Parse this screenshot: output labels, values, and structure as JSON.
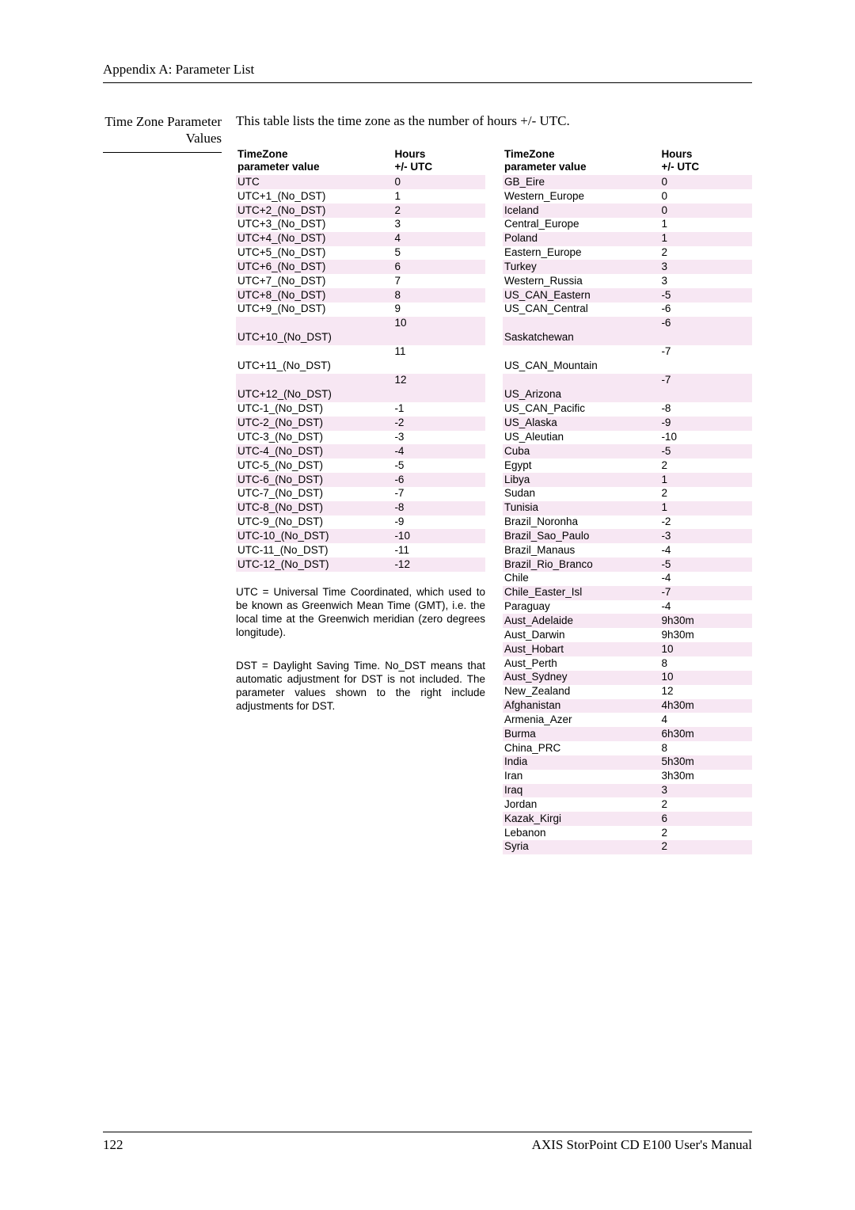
{
  "header": "Appendix A: Parameter List",
  "sectionTitle": "Time Zone Parameter Values",
  "introText": "This table lists the time zone as the number of hours +/- UTC.",
  "table": {
    "col1Header": "TimeZone parameter value",
    "col2Header": "Hours +/- UTC",
    "stripeColor": "#f7e7f3",
    "fontsize": 13.5,
    "left": [
      {
        "name": "UTC",
        "hours": "0"
      },
      {
        "name": "UTC+1_(No_DST)",
        "hours": "1"
      },
      {
        "name": "UTC+2_(No_DST)",
        "hours": "2"
      },
      {
        "name": "UTC+3_(No_DST)",
        "hours": "3"
      },
      {
        "name": "UTC+4_(No_DST)",
        "hours": "4"
      },
      {
        "name": "UTC+5_(No_DST)",
        "hours": "5"
      },
      {
        "name": "UTC+6_(No_DST)",
        "hours": "6"
      },
      {
        "name": "UTC+7_(No_DST)",
        "hours": "7"
      },
      {
        "name": "UTC+8_(No_DST)",
        "hours": "8"
      },
      {
        "name": "UTC+9_(No_DST)",
        "hours": "9"
      },
      {
        "name": "UTC+10_(No_DST)",
        "hours": "10",
        "tall": true
      },
      {
        "name": "UTC+11_(No_DST)",
        "hours": "11",
        "tall": true
      },
      {
        "name": "UTC+12_(No_DST)",
        "hours": "12",
        "tall": true
      },
      {
        "name": "UTC-1_(No_DST)",
        "hours": "-1"
      },
      {
        "name": "UTC-2_(No_DST)",
        "hours": "-2"
      },
      {
        "name": "UTC-3_(No_DST)",
        "hours": "-3"
      },
      {
        "name": "UTC-4_(No_DST)",
        "hours": "-4"
      },
      {
        "name": "UTC-5_(No_DST)",
        "hours": "-5"
      },
      {
        "name": "UTC-6_(No_DST)",
        "hours": "-6"
      },
      {
        "name": "UTC-7_(No_DST)",
        "hours": "-7"
      },
      {
        "name": "UTC-8_(No_DST)",
        "hours": "-8"
      },
      {
        "name": "UTC-9_(No_DST)",
        "hours": "-9"
      },
      {
        "name": "UTC-10_(No_DST)",
        "hours": "-10"
      },
      {
        "name": "UTC-11_(No_DST)",
        "hours": "-11"
      },
      {
        "name": "UTC-12_(No_DST)",
        "hours": "-12"
      }
    ],
    "right": [
      {
        "name": "GB_Eire",
        "hours": "0"
      },
      {
        "name": "Western_Europe",
        "hours": "0"
      },
      {
        "name": "Iceland",
        "hours": "0"
      },
      {
        "name": "Central_Europe",
        "hours": "1"
      },
      {
        "name": "Poland",
        "hours": "1"
      },
      {
        "name": "Eastern_Europe",
        "hours": "2"
      },
      {
        "name": "Turkey",
        "hours": "3"
      },
      {
        "name": "Western_Russia",
        "hours": "3"
      },
      {
        "name": "US_CAN_Eastern",
        "hours": "-5"
      },
      {
        "name": "US_CAN_Central",
        "hours": "-6"
      },
      {
        "name": "Saskatchewan",
        "hours": "-6",
        "tall": true
      },
      {
        "name": "US_CAN_Mountain",
        "hours": "-7",
        "tall": true
      },
      {
        "name": "US_Arizona",
        "hours": "-7",
        "tall": true
      },
      {
        "name": "US_CAN_Pacific",
        "hours": "-8"
      },
      {
        "name": "US_Alaska",
        "hours": "-9"
      },
      {
        "name": "US_Aleutian",
        "hours": "-10"
      },
      {
        "name": "Cuba",
        "hours": "-5"
      },
      {
        "name": "Egypt",
        "hours": "2"
      },
      {
        "name": "Libya",
        "hours": "1"
      },
      {
        "name": "Sudan",
        "hours": "2"
      },
      {
        "name": "Tunisia",
        "hours": "1"
      },
      {
        "name": "Brazil_Noronha",
        "hours": "-2"
      },
      {
        "name": "Brazil_Sao_Paulo",
        "hours": "-3"
      },
      {
        "name": "Brazil_Manaus",
        "hours": "-4"
      },
      {
        "name": "Brazil_Rio_Branco",
        "hours": "-5"
      },
      {
        "name": "Chile",
        "hours": "-4"
      },
      {
        "name": "Chile_Easter_Isl",
        "hours": "-7"
      },
      {
        "name": "Paraguay",
        "hours": "-4"
      },
      {
        "name": "Aust_Adelaide",
        "hours": "9h30m"
      },
      {
        "name": "Aust_Darwin",
        "hours": "9h30m"
      },
      {
        "name": "Aust_Hobart",
        "hours": "10"
      },
      {
        "name": "Aust_Perth",
        "hours": "8"
      },
      {
        "name": "Aust_Sydney",
        "hours": "10"
      },
      {
        "name": "New_Zealand",
        "hours": "12"
      },
      {
        "name": "Afghanistan",
        "hours": "4h30m"
      },
      {
        "name": "Armenia_Azer",
        "hours": "4"
      },
      {
        "name": "Burma",
        "hours": "6h30m"
      },
      {
        "name": "China_PRC",
        "hours": "8"
      },
      {
        "name": "India",
        "hours": "5h30m"
      },
      {
        "name": "Iran",
        "hours": "3h30m"
      },
      {
        "name": "Iraq",
        "hours": "3"
      },
      {
        "name": "Jordan",
        "hours": "2"
      },
      {
        "name": "Kazak_Kirgi",
        "hours": "6"
      },
      {
        "name": "Lebanon",
        "hours": "2"
      },
      {
        "name": "Syria",
        "hours": "2"
      }
    ]
  },
  "notes": [
    "UTC = Universal Time Coordinated, which used to be known as Greenwich Mean Time (GMT), i.e. the local time at the Greenwich meridian (zero degrees longitude).",
    "DST = Daylight Saving Time. No_DST means that automatic adjustment for DST is not included. The parameter values shown to the right include adjustments for DST."
  ],
  "footer": {
    "pageNumber": "122",
    "manualTitle": "AXIS StorPoint CD E100 User's Manual"
  }
}
